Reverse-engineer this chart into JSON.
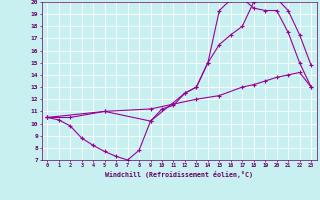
{
  "xlabel": "Windchill (Refroidissement éolien,°C)",
  "background_color": "#c8f0f0",
  "grid_color": "#ffffff",
  "line_color": "#990099",
  "xlim": [
    -0.5,
    23.5
  ],
  "ylim": [
    7,
    20
  ],
  "xticks": [
    0,
    1,
    2,
    3,
    4,
    5,
    6,
    7,
    8,
    9,
    10,
    11,
    12,
    13,
    14,
    15,
    16,
    17,
    18,
    19,
    20,
    21,
    22,
    23
  ],
  "yticks": [
    7,
    8,
    9,
    10,
    11,
    12,
    13,
    14,
    15,
    16,
    17,
    18,
    19,
    20
  ],
  "curve1_x": [
    0,
    1,
    2,
    3,
    4,
    5,
    6,
    7,
    8,
    9,
    10,
    11,
    12,
    13,
    14,
    15,
    16,
    17,
    18,
    19,
    20,
    21,
    22,
    23
  ],
  "curve1_y": [
    10.5,
    10.3,
    9.8,
    8.8,
    8.2,
    7.7,
    7.3,
    7.0,
    7.8,
    10.2,
    11.2,
    11.5,
    12.5,
    13.0,
    15.0,
    16.5,
    17.3,
    18.0,
    20.0,
    20.3,
    20.3,
    19.3,
    17.3,
    14.8
  ],
  "curve2_x": [
    0,
    2,
    5,
    9,
    11,
    13,
    15,
    17,
    18,
    19,
    20,
    21,
    22,
    23
  ],
  "curve2_y": [
    10.5,
    10.5,
    11.0,
    11.2,
    11.6,
    12.0,
    12.3,
    13.0,
    13.2,
    13.5,
    13.8,
    14.0,
    14.2,
    13.0
  ],
  "curve3_x": [
    0,
    5,
    9,
    12,
    13,
    14,
    15,
    16,
    17,
    18,
    19,
    20,
    21,
    22,
    23
  ],
  "curve3_y": [
    10.5,
    11.0,
    10.2,
    12.5,
    13.0,
    15.0,
    19.3,
    20.2,
    20.3,
    19.5,
    19.3,
    19.3,
    17.5,
    15.0,
    13.0
  ]
}
